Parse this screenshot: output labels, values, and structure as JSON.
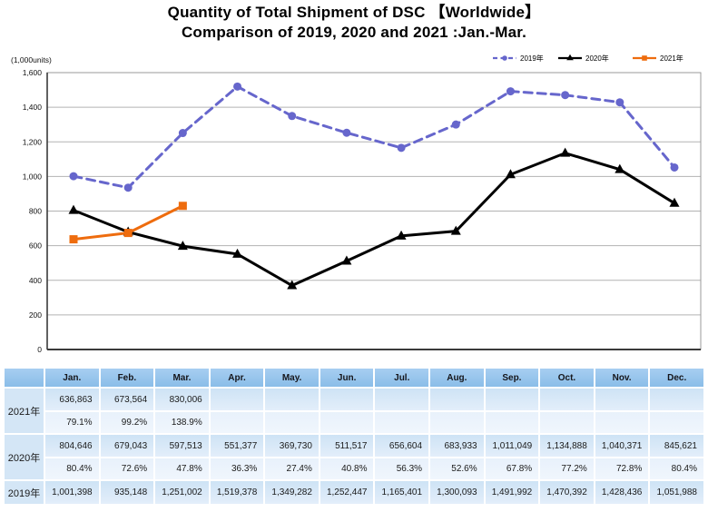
{
  "title": {
    "line1": "Quantity of Total Shipment of DSC 【Worldwide】",
    "line2": "Comparison of 2019, 2020 and 2021 :Jan.-Mar."
  },
  "chart_data": {
    "type": "line",
    "unit_label": "(1,000units)",
    "categories": [
      "Jan.",
      "Feb.",
      "Mar.",
      "Apr.",
      "May.",
      "Jun.",
      "Jul.",
      "Aug.",
      "Sep.",
      "Oct.",
      "Nov.",
      "Dec."
    ],
    "series": [
      {
        "name": "2019年",
        "color": "#6666cc",
        "line_style": "dashed",
        "marker": "circle",
        "values": [
          1001.398,
          935.148,
          1251.002,
          1519.378,
          1349.282,
          1252.447,
          1165.401,
          1300.093,
          1491.992,
          1470.392,
          1428.436,
          1051.988
        ]
      },
      {
        "name": "2020年",
        "color": "#000000",
        "line_style": "solid",
        "marker": "triangle",
        "values": [
          804.646,
          679.043,
          597.513,
          551.377,
          369.73,
          511.517,
          656.604,
          683.933,
          1011.049,
          1134.888,
          1040.371,
          845.621
        ]
      },
      {
        "name": "2021年",
        "color": "#ee6c0e",
        "line_style": "solid",
        "marker": "square",
        "values": [
          636.863,
          673.564,
          830.006
        ]
      }
    ],
    "ylim": [
      0,
      1600
    ],
    "y_tick_step": 200,
    "y_tick_labels": [
      "0",
      "200",
      "400",
      "600",
      "800",
      "1,000",
      "1,200",
      "1,400",
      "1,600"
    ],
    "grid": true,
    "legend_position": "top-right"
  },
  "table": {
    "corner_label": "",
    "months": [
      "Jan.",
      "Feb.",
      "Mar.",
      "Apr.",
      "May.",
      "Jun.",
      "Jul.",
      "Aug.",
      "Sep.",
      "Oct.",
      "Nov.",
      "Dec."
    ],
    "rows": [
      {
        "label": "2021年",
        "shipments": [
          "636,863",
          "673,564",
          "830,006",
          "",
          "",
          "",
          "",
          "",
          "",
          "",
          "",
          ""
        ],
        "yoy": [
          "79.1%",
          "99.2%",
          "138.9%",
          "",
          "",
          "",
          "",
          "",
          "",
          "",
          "",
          ""
        ]
      },
      {
        "label": "2020年",
        "shipments": [
          "804,646",
          "679,043",
          "597,513",
          "551,377",
          "369,730",
          "511,517",
          "656,604",
          "683,933",
          "1,011,049",
          "1,134,888",
          "1,040,371",
          "845,621"
        ],
        "yoy": [
          "80.4%",
          "72.6%",
          "47.8%",
          "36.3%",
          "27.4%",
          "40.8%",
          "56.3%",
          "52.6%",
          "67.8%",
          "77.2%",
          "72.8%",
          "80.4%"
        ]
      },
      {
        "label": "2019年",
        "shipments": [
          "1,001,398",
          "935,148",
          "1,251,002",
          "1,519,378",
          "1,349,282",
          "1,252,447",
          "1,165,401",
          "1,300,093",
          "1,491,992",
          "1,470,392",
          "1,428,436",
          "1,051,988"
        ]
      }
    ]
  }
}
